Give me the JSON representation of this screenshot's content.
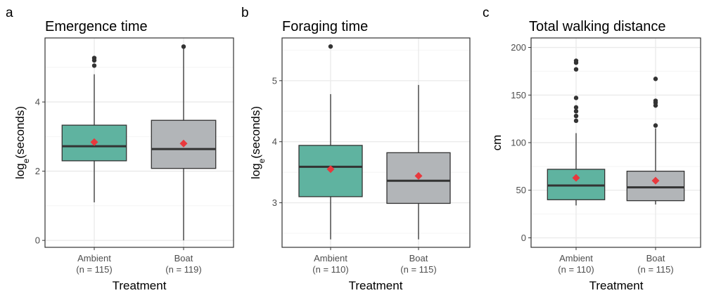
{
  "chart_data": [
    {
      "panel": "a",
      "type": "box",
      "title": "Emergence time",
      "ylabel_main": "log",
      "ylabel_sub": "e",
      "ylabel_rest": "(seconds)",
      "xlabel": "Treatment",
      "ylim": [
        -0.2,
        5.85
      ],
      "yticks": [
        0,
        2,
        4
      ],
      "yminor": [
        1,
        3,
        5
      ],
      "categories": [
        {
          "name": "Ambient",
          "n": "(n = 115)"
        },
        {
          "name": "Boat",
          "n": "(n = 119)"
        }
      ],
      "boxes": [
        {
          "category": "Ambient",
          "min": 1.1,
          "q1": 2.3,
          "median": 2.72,
          "q3": 3.33,
          "max": 4.8,
          "mean": 2.84,
          "outliers": [
            5.05,
            5.2,
            5.27
          ],
          "fill": "#5fb3a0"
        },
        {
          "category": "Boat",
          "min": 0.0,
          "q1": 2.08,
          "median": 2.64,
          "q3": 3.47,
          "max": 5.6,
          "mean": 2.8,
          "outliers": [
            5.6
          ],
          "fill": "#b2b5b8"
        }
      ]
    },
    {
      "panel": "b",
      "type": "box",
      "title": "Foraging time",
      "ylabel_main": "log",
      "ylabel_sub": "e",
      "ylabel_rest": "(seconds)",
      "xlabel": "Treatment",
      "ylim": [
        2.27,
        5.7
      ],
      "yticks": [
        3,
        4,
        5
      ],
      "yminor": [
        2.5,
        3.5,
        4.5,
        5.5
      ],
      "categories": [
        {
          "name": "Ambient",
          "n": "(n = 110)"
        },
        {
          "name": "Boat",
          "n": "(n = 115)"
        }
      ],
      "boxes": [
        {
          "category": "Ambient",
          "min": 2.4,
          "q1": 3.1,
          "median": 3.59,
          "q3": 3.94,
          "max": 4.78,
          "mean": 3.55,
          "outliers": [
            5.56
          ],
          "fill": "#5fb3a0"
        },
        {
          "category": "Boat",
          "min": 2.4,
          "q1": 2.99,
          "median": 3.36,
          "q3": 3.82,
          "max": 4.93,
          "mean": 3.44,
          "outliers": [],
          "fill": "#b2b5b8"
        }
      ]
    },
    {
      "panel": "c",
      "type": "box",
      "title": "Total walking distance",
      "ylabel_main": "cm",
      "ylabel_sub": "",
      "ylabel_rest": "",
      "xlabel": "Treatment",
      "ylim": [
        -10,
        210
      ],
      "yticks": [
        0,
        50,
        100,
        150,
        200
      ],
      "yminor": [
        25,
        75,
        125,
        175
      ],
      "categories": [
        {
          "name": "Ambient",
          "n": "(n = 110)"
        },
        {
          "name": "Boat",
          "n": "(n = 115)"
        }
      ],
      "boxes": [
        {
          "category": "Ambient",
          "min": 34,
          "q1": 40,
          "median": 55,
          "q3": 72,
          "max": 110,
          "mean": 63,
          "outliers": [
            123,
            128,
            133,
            137,
            147,
            177,
            184,
            186
          ],
          "fill": "#5fb3a0"
        },
        {
          "category": "Boat",
          "min": 35,
          "q1": 39,
          "median": 53,
          "q3": 70,
          "max": 115,
          "mean": 60,
          "outliers": [
            118,
            139,
            142,
            144,
            167
          ],
          "fill": "#b2b5b8"
        }
      ]
    }
  ],
  "colors": {
    "ambient_fill": "#5fb3a0",
    "boat_fill": "#b2b5b8",
    "mean_marker": "#e8383d",
    "outlier": "#333333",
    "grid_major": "#ebebeb",
    "grid_minor": "#f4f4f4",
    "panel_border": "#333333"
  }
}
